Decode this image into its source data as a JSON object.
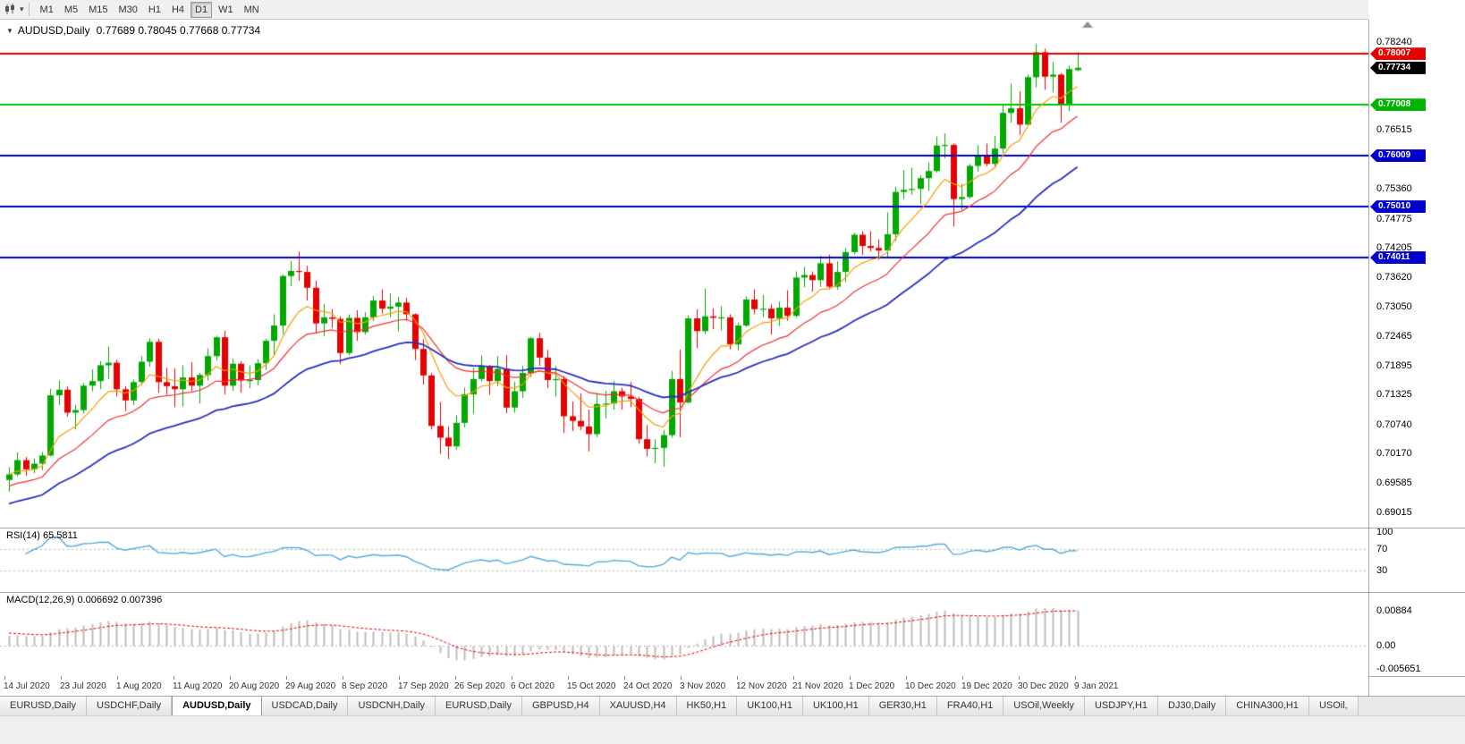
{
  "toolbar": {
    "timeframes": [
      "M1",
      "M5",
      "M15",
      "M30",
      "H1",
      "H4",
      "D1",
      "W1",
      "MN"
    ],
    "active_timeframe": "D1"
  },
  "chart_header": {
    "symbol_title": "AUDUSD,Daily",
    "ohlc": "0.77689 0.78045 0.77668 0.77734"
  },
  "price_scale": {
    "ticks": [
      "0.78240",
      "0.76515",
      "0.75360",
      "0.74775",
      "0.74205",
      "0.73620",
      "0.73050",
      "0.72465",
      "0.71895",
      "0.71325",
      "0.70740",
      "0.70170",
      "0.69585",
      "0.69015"
    ],
    "level_labels": [
      {
        "text": "0.78007",
        "color": "#E60000"
      },
      {
        "text": "0.77734",
        "color": "#000000"
      },
      {
        "text": "0.77008",
        "color": "#00B400"
      },
      {
        "text": "0.76009",
        "color": "#0000CC"
      },
      {
        "text": "0.75010",
        "color": "#0000CC"
      },
      {
        "text": "0.74011",
        "color": "#0000CC"
      }
    ]
  },
  "time_scale": {
    "dates": [
      "14 Jul 2020",
      "23 Jul 2020",
      "1 Aug 2020",
      "11 Aug 2020",
      "20 Aug 2020",
      "29 Aug 2020",
      "8 Sep 2020",
      "17 Sep 2020",
      "26 Sep 2020",
      "6 Oct 2020",
      "15 Oct 2020",
      "24 Oct 2020",
      "3 Nov 2020",
      "12 Nov 2020",
      "21 Nov 2020",
      "1 Dec 2020",
      "10 Dec 2020",
      "19 Dec 2020",
      "30 Dec 2020",
      "9 Jan 2021"
    ]
  },
  "rsi_panel": {
    "label": "RSI(14) 65.5811",
    "value": 65.5811,
    "scale": [
      "100",
      "70",
      "30"
    ],
    "color": "#55A9DC"
  },
  "macd_panel": {
    "label": "MACD(12,26,9) 0.006692 0.007396",
    "main_value": 0.006692,
    "signal_value": 0.007396,
    "scale": [
      "0.00884",
      "0.00",
      "-0.005651"
    ]
  },
  "tabs": [
    {
      "label": "EURUSD,Daily"
    },
    {
      "label": "USDCHF,Daily"
    },
    {
      "label": "AUDUSD,Daily",
      "active": true
    },
    {
      "label": "USDCAD,Daily"
    },
    {
      "label": "USDCNH,Daily"
    },
    {
      "label": "EURUSD,Daily"
    },
    {
      "label": "GBPUSD,H4"
    },
    {
      "label": "XAUUSD,H4"
    },
    {
      "label": "HK50,H1"
    },
    {
      "label": "UK100,H1"
    },
    {
      "label": "UK100,H1"
    },
    {
      "label": "GER30,H1"
    },
    {
      "label": "FRA40,H1"
    },
    {
      "label": "USOil,Weekly"
    },
    {
      "label": "USDJPY,H1"
    },
    {
      "label": "DJ30,Daily"
    },
    {
      "label": "CHINA300,H1"
    },
    {
      "label": "USOil,"
    }
  ],
  "chart_data": {
    "type": "candlestick",
    "symbol": "AUDUSD",
    "timeframe": "Daily",
    "last_candle": {
      "open": 0.77689,
      "high": 0.78045,
      "low": 0.77668,
      "close": 0.77734
    },
    "current_price": 0.77734,
    "levels": [
      {
        "price": 0.78007,
        "color": "#E60000"
      },
      {
        "price": 0.77008,
        "color": "#00C300"
      },
      {
        "price": 0.76009,
        "color": "#0000CC"
      },
      {
        "price": 0.7501,
        "color": "#0000CC"
      },
      {
        "price": 0.74011,
        "color": "#0000CC"
      }
    ],
    "moving_averages": [
      {
        "type": "ema",
        "period": 8,
        "color": "#F59E00",
        "width": 1.2,
        "seed": null
      },
      {
        "type": "ema",
        "period": 17,
        "color": "#F03030",
        "width": 1.2,
        "seed": 0.695
      },
      {
        "type": "ema",
        "period": 34,
        "color": "#2830C0",
        "width": 1.8,
        "seed": 0.6915
      }
    ],
    "indicators": {
      "rsi": {
        "period": 14,
        "value": 65.5811,
        "levels": [
          70,
          30
        ]
      },
      "macd": {
        "fast": 12,
        "slow": 26,
        "signal": 9,
        "main": 0.006692,
        "signal_value": 0.007396
      }
    },
    "candles": [
      [
        0.6965,
        0.699,
        0.6942,
        0.6976
      ],
      [
        0.6976,
        0.7019,
        0.6972,
        0.7004
      ],
      [
        0.7004,
        0.701,
        0.6973,
        0.6986
      ],
      [
        0.6986,
        0.7007,
        0.6978,
        0.6997
      ],
      [
        0.6997,
        0.702,
        0.6984,
        0.7013
      ],
      [
        0.7013,
        0.7144,
        0.7011,
        0.7131
      ],
      [
        0.7131,
        0.716,
        0.7112,
        0.7142
      ],
      [
        0.7142,
        0.7149,
        0.7089,
        0.7097
      ],
      [
        0.7097,
        0.7112,
        0.7064,
        0.7102
      ],
      [
        0.7102,
        0.7155,
        0.7095,
        0.715
      ],
      [
        0.715,
        0.7182,
        0.7139,
        0.7159
      ],
      [
        0.7159,
        0.7198,
        0.7143,
        0.719
      ],
      [
        0.719,
        0.7227,
        0.7163,
        0.7195
      ],
      [
        0.7195,
        0.7201,
        0.7129,
        0.7143
      ],
      [
        0.7143,
        0.7149,
        0.71,
        0.7121
      ],
      [
        0.7121,
        0.7162,
        0.7112,
        0.7157
      ],
      [
        0.7157,
        0.7208,
        0.7151,
        0.7197
      ],
      [
        0.7197,
        0.7243,
        0.7187,
        0.7236
      ],
      [
        0.7236,
        0.7242,
        0.7136,
        0.7157
      ],
      [
        0.7157,
        0.7185,
        0.7132,
        0.7149
      ],
      [
        0.7149,
        0.7184,
        0.7108,
        0.7143
      ],
      [
        0.7143,
        0.719,
        0.7109,
        0.7166
      ],
      [
        0.7166,
        0.7196,
        0.7139,
        0.715
      ],
      [
        0.715,
        0.7175,
        0.7115,
        0.7171
      ],
      [
        0.7171,
        0.7223,
        0.716,
        0.7208
      ],
      [
        0.7208,
        0.7248,
        0.7199,
        0.7245
      ],
      [
        0.7245,
        0.7258,
        0.7133,
        0.715
      ],
      [
        0.715,
        0.7203,
        0.714,
        0.7193
      ],
      [
        0.7193,
        0.7198,
        0.7136,
        0.716
      ],
      [
        0.716,
        0.719,
        0.7145,
        0.7161
      ],
      [
        0.7161,
        0.7202,
        0.7151,
        0.7194
      ],
      [
        0.7194,
        0.7242,
        0.7181,
        0.7238
      ],
      [
        0.7238,
        0.729,
        0.721,
        0.7268
      ],
      [
        0.7268,
        0.7368,
        0.7251,
        0.7365
      ],
      [
        0.7365,
        0.7395,
        0.7345,
        0.7375
      ],
      [
        0.7375,
        0.7413,
        0.7356,
        0.7373
      ],
      [
        0.7373,
        0.7385,
        0.7317,
        0.7342
      ],
      [
        0.7342,
        0.7356,
        0.7252,
        0.7272
      ],
      [
        0.7272,
        0.731,
        0.7247,
        0.7284
      ],
      [
        0.7284,
        0.73,
        0.7263,
        0.7281
      ],
      [
        0.7281,
        0.7286,
        0.7192,
        0.7214
      ],
      [
        0.7214,
        0.729,
        0.721,
        0.7283
      ],
      [
        0.7283,
        0.7298,
        0.7238,
        0.7255
      ],
      [
        0.7255,
        0.7294,
        0.725,
        0.7284
      ],
      [
        0.7284,
        0.7326,
        0.7277,
        0.7317
      ],
      [
        0.7317,
        0.7339,
        0.7291,
        0.7301
      ],
      [
        0.7301,
        0.7331,
        0.7284,
        0.7305
      ],
      [
        0.7305,
        0.7324,
        0.7256,
        0.7313
      ],
      [
        0.7313,
        0.7322,
        0.7277,
        0.729
      ],
      [
        0.729,
        0.7292,
        0.72,
        0.7222
      ],
      [
        0.7222,
        0.7241,
        0.7152,
        0.717
      ],
      [
        0.717,
        0.7175,
        0.7064,
        0.7071
      ],
      [
        0.7071,
        0.7118,
        0.7016,
        0.7048
      ],
      [
        0.7048,
        0.707,
        0.7006,
        0.7031
      ],
      [
        0.7031,
        0.7092,
        0.7025,
        0.7077
      ],
      [
        0.7077,
        0.7146,
        0.7068,
        0.7133
      ],
      [
        0.7133,
        0.7185,
        0.7095,
        0.7163
      ],
      [
        0.7163,
        0.7209,
        0.7158,
        0.7188
      ],
      [
        0.7188,
        0.7191,
        0.7132,
        0.7159
      ],
      [
        0.7159,
        0.7208,
        0.7149,
        0.7183
      ],
      [
        0.7183,
        0.721,
        0.7096,
        0.7107
      ],
      [
        0.7107,
        0.7158,
        0.7097,
        0.7139
      ],
      [
        0.7139,
        0.7189,
        0.7126,
        0.7175
      ],
      [
        0.7175,
        0.7246,
        0.7167,
        0.7243
      ],
      [
        0.7243,
        0.7254,
        0.7189,
        0.7205
      ],
      [
        0.7205,
        0.722,
        0.7145,
        0.7161
      ],
      [
        0.7161,
        0.7188,
        0.7129,
        0.7163
      ],
      [
        0.7163,
        0.7169,
        0.7057,
        0.709
      ],
      [
        0.709,
        0.7119,
        0.7061,
        0.7081
      ],
      [
        0.7081,
        0.7135,
        0.7063,
        0.707
      ],
      [
        0.707,
        0.7103,
        0.7021,
        0.7055
      ],
      [
        0.7055,
        0.7136,
        0.7049,
        0.7114
      ],
      [
        0.7114,
        0.714,
        0.7086,
        0.7115
      ],
      [
        0.7115,
        0.7159,
        0.7103,
        0.7139
      ],
      [
        0.7139,
        0.7146,
        0.7103,
        0.7129
      ],
      [
        0.7129,
        0.7157,
        0.7108,
        0.7124
      ],
      [
        0.7124,
        0.7128,
        0.7036,
        0.7045
      ],
      [
        0.7045,
        0.7073,
        0.7011,
        0.7026
      ],
      [
        0.7026,
        0.7045,
        0.6998,
        0.7028
      ],
      [
        0.7028,
        0.7063,
        0.6991,
        0.7053
      ],
      [
        0.7053,
        0.7179,
        0.7048,
        0.7163
      ],
      [
        0.7163,
        0.7221,
        0.7049,
        0.7117
      ],
      [
        0.7117,
        0.7288,
        0.7115,
        0.7282
      ],
      [
        0.7282,
        0.73,
        0.7223,
        0.7257
      ],
      [
        0.7257,
        0.734,
        0.7251,
        0.7286
      ],
      [
        0.7286,
        0.7302,
        0.7261,
        0.7283
      ],
      [
        0.7283,
        0.7306,
        0.7258,
        0.7284
      ],
      [
        0.7284,
        0.729,
        0.7221,
        0.7231
      ],
      [
        0.7231,
        0.7273,
        0.7219,
        0.7268
      ],
      [
        0.7268,
        0.7325,
        0.7265,
        0.7319
      ],
      [
        0.7319,
        0.7339,
        0.729,
        0.73
      ],
      [
        0.73,
        0.7328,
        0.7284,
        0.7301
      ],
      [
        0.7301,
        0.731,
        0.725,
        0.7282
      ],
      [
        0.7282,
        0.7315,
        0.7267,
        0.7303
      ],
      [
        0.7303,
        0.7337,
        0.7277,
        0.7287
      ],
      [
        0.7287,
        0.7374,
        0.7283,
        0.7362
      ],
      [
        0.7362,
        0.7383,
        0.7343,
        0.7367
      ],
      [
        0.7367,
        0.7374,
        0.7334,
        0.7357
      ],
      [
        0.7357,
        0.7405,
        0.7344,
        0.739
      ],
      [
        0.739,
        0.7407,
        0.7339,
        0.7344
      ],
      [
        0.7344,
        0.7394,
        0.7338,
        0.7373
      ],
      [
        0.7373,
        0.742,
        0.7353,
        0.7412
      ],
      [
        0.7412,
        0.745,
        0.7407,
        0.7446
      ],
      [
        0.7446,
        0.7453,
        0.7406,
        0.7424
      ],
      [
        0.7424,
        0.7453,
        0.7413,
        0.742
      ],
      [
        0.742,
        0.7437,
        0.7397,
        0.7415
      ],
      [
        0.7415,
        0.749,
        0.7401,
        0.7447
      ],
      [
        0.7447,
        0.754,
        0.7434,
        0.753
      ],
      [
        0.753,
        0.7573,
        0.7516,
        0.7534
      ],
      [
        0.7534,
        0.7578,
        0.7525,
        0.7536
      ],
      [
        0.7536,
        0.7563,
        0.7506,
        0.7557
      ],
      [
        0.7557,
        0.7588,
        0.7532,
        0.7571
      ],
      [
        0.7571,
        0.7639,
        0.7568,
        0.7621
      ],
      [
        0.7621,
        0.7645,
        0.7596,
        0.7622
      ],
      [
        0.7622,
        0.7625,
        0.7462,
        0.7516
      ],
      [
        0.7516,
        0.7546,
        0.7495,
        0.752
      ],
      [
        0.752,
        0.7585,
        0.7517,
        0.7581
      ],
      [
        0.7581,
        0.7622,
        0.757,
        0.7601
      ],
      [
        0.7601,
        0.7625,
        0.758,
        0.7585
      ],
      [
        0.7585,
        0.764,
        0.758,
        0.7615
      ],
      [
        0.7615,
        0.77,
        0.7606,
        0.7685
      ],
      [
        0.7685,
        0.7743,
        0.7666,
        0.7694
      ],
      [
        0.7694,
        0.7727,
        0.7642,
        0.7662
      ],
      [
        0.7662,
        0.776,
        0.7659,
        0.7755
      ],
      [
        0.7755,
        0.782,
        0.7735,
        0.7804
      ],
      [
        0.7804,
        0.7811,
        0.773,
        0.7756
      ],
      [
        0.7756,
        0.7785,
        0.7726,
        0.776
      ],
      [
        0.776,
        0.7763,
        0.7666,
        0.77
      ],
      [
        0.77,
        0.7778,
        0.7688,
        0.7771
      ],
      [
        0.77689,
        0.78045,
        0.77668,
        0.77734
      ]
    ]
  }
}
